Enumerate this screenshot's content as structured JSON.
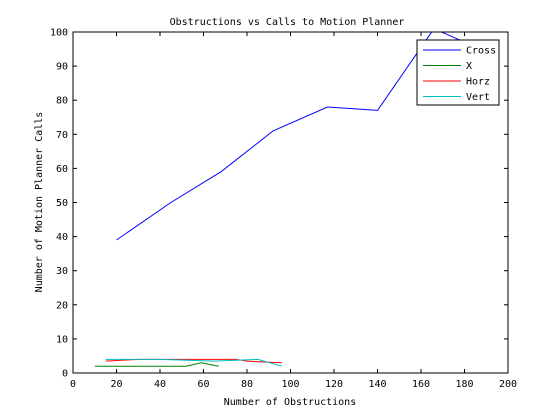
{
  "chart_data": {
    "type": "line",
    "title": "Obstructions vs Calls to Motion Planner",
    "xlabel": "Number of Obstructions",
    "ylabel": "Number of Motion Planner Calls",
    "xlim": [
      0,
      200
    ],
    "ylim": [
      0,
      100
    ],
    "xticks": [
      0,
      20,
      40,
      60,
      80,
      100,
      120,
      140,
      160,
      180,
      200
    ],
    "yticks": [
      0,
      10,
      20,
      30,
      40,
      50,
      60,
      70,
      80,
      90,
      100
    ],
    "grid": false,
    "legend_position": "top-right",
    "series": [
      {
        "name": "Cross",
        "color": "#0000ff",
        "points": [
          [
            20,
            39
          ],
          [
            45,
            50
          ],
          [
            68,
            59
          ],
          [
            92,
            71
          ],
          [
            117,
            78
          ],
          [
            140,
            77
          ],
          [
            166,
            101
          ],
          [
            180,
            97
          ]
        ]
      },
      {
        "name": "X",
        "color": "#008000",
        "points": [
          [
            10,
            2
          ],
          [
            52,
            2
          ],
          [
            59,
            3
          ],
          [
            67,
            2
          ]
        ]
      },
      {
        "name": "Horz",
        "color": "#ff0000",
        "points": [
          [
            15,
            3.5
          ],
          [
            30,
            4
          ],
          [
            55,
            4
          ],
          [
            75,
            4
          ],
          [
            80,
            3.5
          ],
          [
            96,
            3
          ]
        ]
      },
      {
        "name": "Vert",
        "color": "#00bfbf",
        "points": [
          [
            15,
            4
          ],
          [
            40,
            4
          ],
          [
            65,
            3.5
          ],
          [
            85,
            4
          ],
          [
            96,
            2
          ]
        ]
      }
    ]
  }
}
